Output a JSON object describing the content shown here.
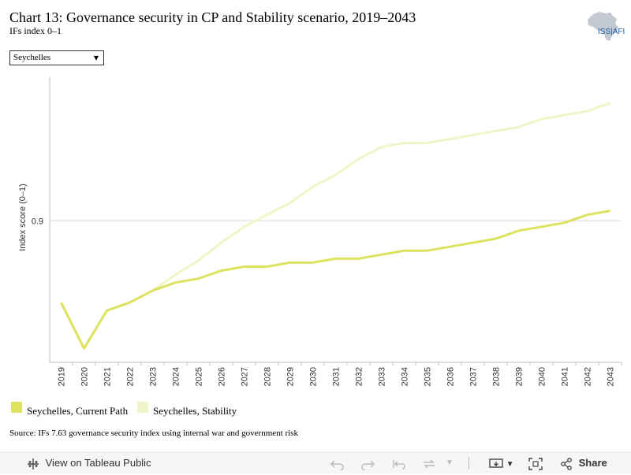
{
  "header": {
    "title": "Chart 13: Governance security in CP and Stability scenario, 2019–2043",
    "subtitle": "IFs index 0–1",
    "logo_text": "ISS|AFI"
  },
  "filter": {
    "selected": "Seychelles"
  },
  "chart_data": {
    "type": "line",
    "title": "Chart 13: Governance security in CP and Stability scenario, 2019–2043",
    "subtitle": "IFs index 0–1",
    "xlabel": "",
    "ylabel": "Index score (0–1)",
    "x": [
      2019,
      2020,
      2021,
      2022,
      2023,
      2024,
      2025,
      2026,
      2027,
      2028,
      2029,
      2030,
      2031,
      2032,
      2033,
      2034,
      2035,
      2036,
      2037,
      2038,
      2039,
      2040,
      2041,
      2042,
      2043
    ],
    "ylim": [
      0.829,
      0.972
    ],
    "yticks": [
      0.9
    ],
    "ytick_labels": [
      "0.9"
    ],
    "grid": "horizontal",
    "legend_position": "bottom-left",
    "series": [
      {
        "name": "Seychelles, Current Path",
        "color": "#dde25f",
        "values": [
          0.859,
          0.836,
          0.855,
          0.859,
          0.865,
          0.869,
          0.871,
          0.875,
          0.877,
          0.877,
          0.879,
          0.879,
          0.881,
          0.881,
          0.883,
          0.885,
          0.885,
          0.887,
          0.889,
          0.891,
          0.895,
          0.897,
          0.899,
          0.903,
          0.905
        ]
      },
      {
        "name": "Seychelles, Stability",
        "color": "#f1f4c7",
        "values": [
          0.859,
          0.836,
          0.855,
          0.859,
          0.865,
          0.873,
          0.88,
          0.889,
          0.897,
          0.903,
          0.909,
          0.917,
          0.923,
          0.931,
          0.937,
          0.939,
          0.939,
          0.941,
          0.943,
          0.945,
          0.947,
          0.951,
          0.953,
          0.955,
          0.959
        ]
      }
    ]
  },
  "source": "Source: IFs 7.63 governance security index using internal war and government risk",
  "toolbar": {
    "view_label": "View on Tableau Public",
    "share_label": "Share"
  },
  "colors": {
    "current_path": "#dde25f",
    "stability": "#f1f4c7",
    "gridline": "#d9d9d9"
  }
}
